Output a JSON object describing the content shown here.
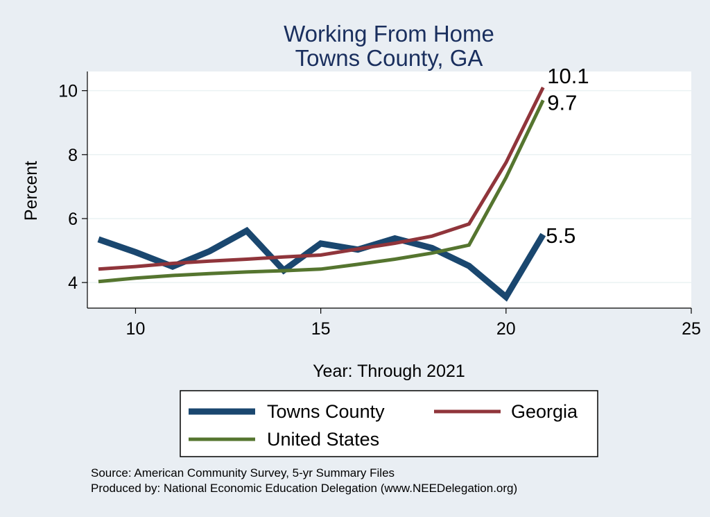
{
  "chart_data": {
    "type": "line",
    "title": "Working From Home",
    "subtitle": "Towns County, GA",
    "xlabel": "Year: Through 2021",
    "ylabel": "Percent",
    "xlim": [
      8.7,
      25
    ],
    "ylim": [
      3.2,
      10.6
    ],
    "xticks": [
      10,
      15,
      20,
      25
    ],
    "yticks": [
      4,
      6,
      8,
      10
    ],
    "grid": true,
    "legend_position": "bottom",
    "series": [
      {
        "name": "Towns County",
        "color": "#1a476f",
        "x": [
          9,
          10,
          11,
          12,
          13,
          14,
          15,
          16,
          17,
          18,
          19,
          20,
          21
        ],
        "values": [
          5.35,
          4.95,
          4.5,
          4.98,
          5.62,
          4.38,
          5.22,
          5.03,
          5.38,
          5.08,
          4.52,
          3.55,
          5.5
        ],
        "end_label": "5.5"
      },
      {
        "name": "Georgia",
        "color": "#90353b",
        "x": [
          9,
          10,
          11,
          12,
          13,
          14,
          15,
          16,
          17,
          18,
          19,
          20,
          21
        ],
        "values": [
          4.42,
          4.5,
          4.6,
          4.67,
          4.73,
          4.8,
          4.86,
          5.05,
          5.23,
          5.45,
          5.83,
          7.75,
          10.1
        ],
        "end_label": "10.1"
      },
      {
        "name": "United States",
        "color": "#55752f",
        "x": [
          9,
          10,
          11,
          12,
          13,
          14,
          15,
          16,
          17,
          18,
          19,
          20,
          21
        ],
        "values": [
          4.03,
          4.14,
          4.22,
          4.28,
          4.33,
          4.37,
          4.42,
          4.57,
          4.73,
          4.92,
          5.17,
          7.28,
          9.7
        ],
        "end_label": "9.7"
      }
    ],
    "notes": [
      "Source: American Community Survey, 5-yr Summary Files",
      "Produced by: National Economic Education Delegation (www.NEEDelegation.org)"
    ]
  }
}
